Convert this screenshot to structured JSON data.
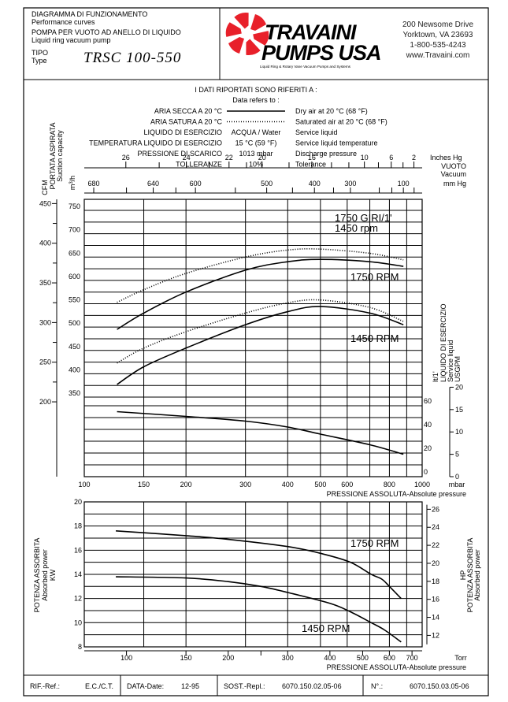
{
  "header": {
    "title_it": "DIAGRAMMA DI FUNZIONAMENTO",
    "title_en": "Performance curves",
    "subtitle_it": "POMPA PER VUOTO AD ANELLO DI LIQUIDO",
    "subtitle_en": "Liquid ring vacuum pump",
    "type_label_it": "TIPO",
    "type_label_en": "Type",
    "model": "TRSC 100-550"
  },
  "company": {
    "name_line1": "TRAVAINI",
    "name_line2": "PUMPS USA",
    "tagline": "Liquid Ring & Rotary Vane Vacuum Pumps and Systems",
    "address1": "200 Newsome Drive",
    "address2": "Yorktown, VA 23693",
    "phone": "1-800-535-4243",
    "website": "www.Travaini.com",
    "logo_color": "#e8202a"
  },
  "conditions": {
    "heading_it": "I DATI RIPORTATI SONO RIFERITI A :",
    "heading_en": "Data refers to :",
    "rows": [
      {
        "it": "ARIA SECCA A 20 °C",
        "value": "",
        "line": "solid",
        "en": "Dry air at 20 °C (68 °F)"
      },
      {
        "it": "ARIA SATURA A 20 °C",
        "value": "",
        "line": "dotted",
        "en": "Saturated air at 20 °C (68 °F)"
      },
      {
        "it": "LIQUIDO DI ESERCIZIO",
        "value": "ACQUA / Water",
        "en": "Service liquid"
      },
      {
        "it": "TEMPERATURA LIQUIDO DI ESERCIZIO",
        "value": "15 °C (59 °F)",
        "en": "Service liquid temperature"
      },
      {
        "it": "PRESSIONE DI SCARICO",
        "value": "1013 mbar",
        "en": "Discharge pressure"
      },
      {
        "it": "TOLLERANZE",
        "value": "10%",
        "en": "Tolerance"
      }
    ]
  },
  "chart_data": [
    {
      "type": "line",
      "x_scale": "log",
      "xlabel": "PRESSIONE ASSOLUTA-Absolute pressure",
      "xunit": "mbar",
      "xlim": [
        100,
        1000
      ],
      "xticks": [
        100,
        150,
        200,
        300,
        400,
        500,
        600,
        800,
        1000
      ],
      "xgrid": [
        100,
        150,
        200,
        300,
        400,
        500,
        600,
        700,
        800,
        900,
        1000
      ],
      "ylabel_it": "PORTATA ASPIRATA",
      "ylabel_en": "Suction capacity",
      "yunit": "m3/h",
      "yunit_base": "m",
      "yunit_sup": "3",
      "yunit_tail": "/h",
      "yticks": [
        350,
        400,
        450,
        500,
        550,
        600,
        650,
        700,
        750
      ],
      "cfm_label": "CFM",
      "cfm_ticks": [
        200,
        250,
        300,
        350,
        400,
        450
      ],
      "liquid_label_unit": "lt/1'",
      "liquid_label_it": "LIQUIDO DI ESERCIZIO",
      "liquid_label_en": "Service liquid",
      "liquid_label_us": "USGPM",
      "liquid_ticks": [
        0,
        20,
        40,
        60
      ],
      "usgpm_ticks": [
        0,
        5,
        10,
        15,
        20
      ],
      "vacuum_inhg_label": "Inches Hg",
      "vacuum_label_it": "VUOTO",
      "vacuum_label_en": "Vacuum",
      "vacuum_mmhg_label": "mm Hg",
      "vacuum_inhg_ticks": [
        26,
        24,
        22,
        20,
        16,
        10,
        6,
        2
      ],
      "vacuum_inhg_minor": [
        25,
        23,
        21,
        18,
        14,
        12,
        8,
        4
      ],
      "vacuum_mmhg_ticks": [
        680,
        640,
        600,
        500,
        400,
        300,
        100
      ],
      "vacuum_mmhg_minor": [
        660,
        620,
        550,
        450,
        350,
        200,
        150,
        50
      ],
      "annotations": [
        "1750 GIRI/1'",
        "1450 rpm",
        "1750 RPM",
        "1450 RPM"
      ],
      "series": [
        {
          "name": "1750 RPM",
          "medium": "dry air",
          "style": "solid",
          "axis": "m3/h",
          "x": [
            125,
            150,
            200,
            300,
            400,
            500,
            700,
            880
          ],
          "y": [
            495,
            530,
            575,
            622,
            640,
            645,
            640,
            630
          ]
        },
        {
          "name": "1750 RPM",
          "medium": "saturated air",
          "style": "dotted",
          "axis": "m3/h",
          "x": [
            125,
            150,
            200,
            300,
            400,
            500,
            700,
            880
          ],
          "y": [
            553,
            580,
            615,
            650,
            665,
            667,
            658,
            644
          ]
        },
        {
          "name": "1450 RPM",
          "medium": "dry air",
          "style": "solid",
          "axis": "m3/h",
          "x": [
            125,
            150,
            200,
            300,
            400,
            500,
            700,
            880
          ],
          "y": [
            377,
            415,
            455,
            505,
            533,
            544,
            530,
            505
          ]
        },
        {
          "name": "1450 RPM",
          "medium": "saturated air",
          "style": "dotted",
          "axis": "m3/h",
          "x": [
            125,
            150,
            200,
            300,
            400,
            500,
            700,
            880
          ],
          "y": [
            423,
            455,
            490,
            530,
            552,
            558,
            542,
            512
          ]
        },
        {
          "medium": "service liquid",
          "style": "solid",
          "axis": "lt/1'",
          "x": [
            125,
            200,
            300,
            400,
            500,
            700,
            880
          ],
          "y": [
            55,
            51,
            47,
            42,
            36,
            27,
            19
          ]
        }
      ]
    },
    {
      "type": "line",
      "x_scale": "log",
      "xlabel": "PRESSIONE ASSOLUTA-Absolute pressure",
      "xunit": "Torr",
      "xticks": [
        100,
        150,
        200,
        300,
        400,
        500,
        600,
        700
      ],
      "xminor": [
        250
      ],
      "ylabel_it": "POTENZA ASSORBITA",
      "ylabel_en": "Absorbed power",
      "yunit": "KW",
      "ylim": [
        8,
        20
      ],
      "yticks": [
        8,
        10,
        12,
        14,
        16,
        18,
        20
      ],
      "hp_unit": "HP",
      "hp_ticks": [
        12,
        14,
        16,
        18,
        20,
        22,
        24,
        26
      ],
      "annotations": [
        "1750 RPM",
        "1450 RPM"
      ],
      "series": [
        {
          "name": "1750 RPM",
          "x": [
            93,
            150,
            200,
            300,
            380,
            460,
            530,
            570,
            600,
            650
          ],
          "y": [
            17.6,
            17.2,
            16.9,
            16.3,
            15.7,
            15.0,
            14.0,
            13.6,
            13.0,
            12.0
          ]
        },
        {
          "name": "1450 RPM",
          "x": [
            93,
            150,
            200,
            250,
            300,
            400,
            460,
            530,
            580,
            650
          ],
          "y": [
            13.8,
            13.7,
            13.4,
            13.0,
            12.5,
            11.6,
            10.9,
            10.0,
            9.4,
            8.4
          ]
        }
      ]
    }
  ],
  "footer": {
    "ref_label": "RIF.-Ref.:",
    "ref_value": "E.C./C.T.",
    "date_label": "DATA-Date:",
    "date_value": "12-95",
    "replaces_label": "SOST.-Repl.:",
    "replaces_value": "6070.150.02.05-06",
    "number_label": "N°.:",
    "number_value": "6070.150.03.05-06"
  }
}
